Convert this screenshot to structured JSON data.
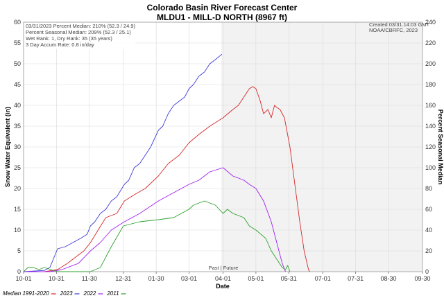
{
  "chart_data": {
    "type": "line",
    "title": "Colorado Basin River Forecast Center",
    "subtitle": "MLDU1 - MILL-D NORTH (8967 ft)",
    "xlabel": "Date",
    "ylabel": "Snow Water Equivalent (in)",
    "y2label": "Percent Seasonal Median",
    "ylim": [
      0,
      60
    ],
    "y2lim": [
      0,
      240
    ],
    "yticks": [
      "0",
      "5",
      "10",
      "15",
      "20",
      "25",
      "30",
      "35",
      "40",
      "45",
      "50",
      "55",
      "60"
    ],
    "y2ticks": [
      "0",
      "20",
      "40",
      "60",
      "80",
      "100",
      "120",
      "140",
      "160",
      "180",
      "200",
      "220",
      "240"
    ],
    "xticks": [
      "10-01",
      "10-31",
      "11-30",
      "12-31",
      "01-30",
      "03-01",
      "04-01",
      "05-01",
      "05-31",
      "07-01",
      "07-31",
      "08-30",
      "09-30"
    ],
    "past_future_label": "Past | Future",
    "grid": true,
    "info_lines": [
      "03/31/2023 Percent Median: 210% (52.3 / 24.9)",
      "Percent Seasonal Median: 209% (52.3 / 25.1)",
      "Wet Rank: 1, Dry Rank: 35  (35 years)",
      "3 Day Accum Rate: 0.8 in/day"
    ],
    "created_lines": [
      "Created 03/31.14:03 GMT",
      "NOAA/CBRFC, 2023"
    ],
    "series": [
      {
        "name": "Median 1991-2020",
        "color": "#d62728",
        "x": [
          "10-01",
          "10-20",
          "11-01",
          "11-10",
          "11-20",
          "11-25",
          "12-01",
          "12-08",
          "12-15",
          "12-25",
          "01-01",
          "01-10",
          "01-20",
          "02-01",
          "02-10",
          "02-20",
          "03-01",
          "03-10",
          "03-20",
          "04-01",
          "04-10",
          "04-15",
          "04-20",
          "04-25",
          "04-28",
          "05-01",
          "05-05",
          "05-08",
          "05-12",
          "05-15",
          "05-18",
          "05-20",
          "05-23",
          "05-27",
          "06-01",
          "06-05",
          "06-10",
          "06-14",
          "06-18",
          "06-19"
        ],
        "y": [
          0,
          0,
          0.5,
          2,
          4,
          5,
          7,
          10,
          13,
          14,
          17,
          18.5,
          20,
          23,
          26,
          28,
          31,
          33,
          35,
          37,
          39,
          40,
          42,
          44,
          44.5,
          44,
          41,
          38,
          39,
          37,
          40,
          39.5,
          39,
          37,
          30,
          22,
          12,
          5,
          0.5,
          0
        ]
      },
      {
        "name": "2023",
        "color": "#3b3bd6",
        "x": [
          "10-01",
          "10-20",
          "10-25",
          "11-01",
          "11-08",
          "11-15",
          "11-22",
          "11-28",
          "12-01",
          "12-05",
          "12-10",
          "12-15",
          "12-20",
          "12-25",
          "01-01",
          "01-05",
          "01-10",
          "01-15",
          "01-20",
          "01-25",
          "02-01",
          "02-05",
          "02-10",
          "02-15",
          "02-20",
          "02-25",
          "03-01",
          "03-05",
          "03-10",
          "03-15",
          "03-20",
          "03-25",
          "03-31"
        ],
        "y": [
          0,
          0.3,
          1,
          5.5,
          6,
          7,
          8,
          9,
          11,
          12,
          14,
          15,
          17,
          18,
          21,
          22,
          25,
          26,
          28,
          30,
          34,
          35,
          38,
          40,
          41,
          42,
          44,
          45,
          47,
          48,
          50,
          51,
          52.3
        ]
      },
      {
        "name": "2022",
        "color": "#a020f0",
        "x": [
          "10-01",
          "10-25",
          "11-05",
          "11-20",
          "12-01",
          "12-10",
          "12-20",
          "01-01",
          "01-15",
          "02-01",
          "02-15",
          "03-01",
          "03-10",
          "03-20",
          "04-01",
          "04-10",
          "04-20",
          "04-25",
          "05-01",
          "05-08",
          "05-15",
          "05-20",
          "05-25",
          "05-28"
        ],
        "y": [
          0,
          0,
          0.5,
          2,
          5,
          7,
          10,
          12,
          14,
          17,
          19,
          21,
          22,
          24,
          25,
          23,
          22,
          21,
          20,
          17,
          12,
          7,
          2,
          0
        ]
      },
      {
        "name": "2011",
        "color": "#2ca02c",
        "x": [
          "10-01",
          "10-05",
          "10-10",
          "10-15",
          "10-20",
          "11-01",
          "11-15",
          "12-01",
          "12-10",
          "12-20",
          "12-31",
          "01-15",
          "02-01",
          "02-15",
          "03-01",
          "03-05",
          "03-15",
          "03-25",
          "04-01",
          "04-05",
          "04-10",
          "04-20",
          "04-25",
          "05-01",
          "05-10",
          "05-15",
          "05-20",
          "05-25",
          "05-28",
          "05-30",
          "06-01"
        ],
        "y": [
          0,
          1,
          1,
          0.5,
          1,
          0,
          0,
          0,
          1,
          6,
          11,
          12,
          12.5,
          13,
          15,
          16,
          17,
          16,
          14,
          15,
          14,
          13,
          11,
          10,
          8,
          5,
          3,
          1,
          0.5,
          1.5,
          0
        ]
      }
    ]
  }
}
